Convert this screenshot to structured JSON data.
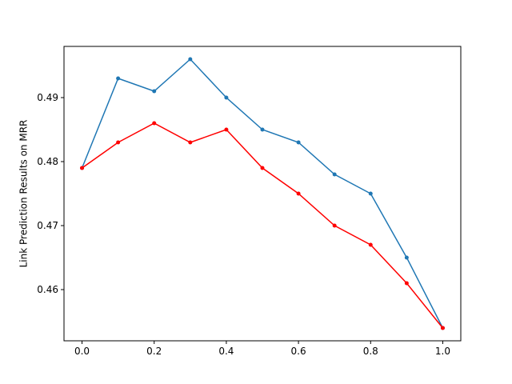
{
  "chart_data": {
    "type": "line",
    "y_label": "Link Prediction Results on MRR",
    "x": [
      0.0,
      0.1,
      0.2,
      0.3,
      0.4,
      0.5,
      0.6,
      0.7,
      0.8,
      0.9,
      1.0
    ],
    "series": [
      {
        "color": "#1f77b4",
        "values": [
          0.479,
          0.493,
          0.491,
          0.496,
          0.49,
          0.485,
          0.483,
          0.478,
          0.475,
          0.465,
          0.454
        ]
      },
      {
        "color": "#ff0000",
        "values": [
          0.479,
          0.483,
          0.486,
          0.483,
          0.485,
          0.479,
          0.475,
          0.47,
          0.467,
          0.461,
          0.454
        ]
      }
    ],
    "xlim": [
      -0.05,
      1.05
    ],
    "ylim": [
      0.452,
      0.498
    ],
    "xticks": [
      {
        "value": 0,
        "label": "0.0"
      },
      {
        "value": 0.2,
        "label": "0.2"
      },
      {
        "value": 0.4,
        "label": "0.4"
      },
      {
        "value": 0.6,
        "label": "0.6"
      },
      {
        "value": 0.8,
        "label": "0.8"
      },
      {
        "value": 1,
        "label": "1.0"
      }
    ],
    "yticks": [
      0.46,
      0.47,
      0.48,
      0.49
    ],
    "grid": false
  }
}
